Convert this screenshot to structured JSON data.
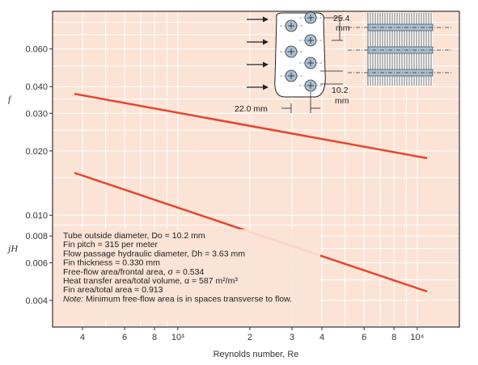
{
  "chart_data": {
    "type": "line",
    "xlabel": "Reynolds number, Re",
    "x_scale": "log",
    "y_scale": "log",
    "xlim": [
      300,
      15000
    ],
    "ylim": [
      0.003,
      0.09
    ],
    "grid": true,
    "x_ticks": [
      {
        "value": 400,
        "label": "4"
      },
      {
        "value": 600,
        "label": "6"
      },
      {
        "value": 800,
        "label": "8"
      },
      {
        "value": 1000,
        "label": "10³"
      },
      {
        "value": 2000,
        "label": "2"
      },
      {
        "value": 3000,
        "label": "3"
      },
      {
        "value": 4000,
        "label": "4"
      },
      {
        "value": 6000,
        "label": "6"
      },
      {
        "value": 8000,
        "label": "8"
      },
      {
        "value": 10000,
        "label": "10⁴"
      }
    ],
    "y_ticks": [
      {
        "value": 0.06,
        "label": "0.060"
      },
      {
        "value": 0.04,
        "label": "0.040"
      },
      {
        "value": 0.03,
        "label": "0.030"
      },
      {
        "value": 0.02,
        "label": "0.020"
      },
      {
        "value": 0.01,
        "label": "0.010"
      },
      {
        "value": 0.008,
        "label": "0.008"
      },
      {
        "value": 0.006,
        "label": "0.006"
      },
      {
        "value": 0.004,
        "label": "0.004"
      }
    ],
    "series": [
      {
        "name": "f",
        "color": "#e8432e",
        "x": [
          370,
          11000
        ],
        "y": [
          0.037,
          0.0185
        ]
      },
      {
        "name": "jH",
        "color": "#e8432e",
        "x": [
          370,
          11000
        ],
        "y": [
          0.0158,
          0.0044
        ]
      }
    ],
    "series_labels": [
      {
        "text": "f",
        "y_value": 0.035
      },
      {
        "text": "jH",
        "y_value": 0.007
      }
    ],
    "notes": [
      "Tube outside diameter, Do = 10.2 mm",
      "Fin pitch = 315 per meter",
      "Flow passage hydraulic diameter, Dh = 3.63 mm",
      "Fin thickness = 0.330 mm",
      "Free-flow area/frontal area, σ = 0.534",
      "Heat transfer area/total volume, α = 587 m²/m³",
      "Fin area/total area = 0.913",
      "Note: Minimum free-flow area is in spaces transverse to flow."
    ],
    "inset_labels": {
      "pitch_transverse": "25.4",
      "pitch_transverse_unit": "mm",
      "tube_diameter": "10.2",
      "tube_diameter_unit": "mm",
      "pitch_longitudinal": "22.0 mm"
    }
  },
  "colors": {
    "plot_background": "#fbe3d6",
    "grid": "#ffffff",
    "line": "#e8432e",
    "axis": "#333333",
    "inset_fill": "#ffffff",
    "tube_fill": "#a9bed3"
  }
}
